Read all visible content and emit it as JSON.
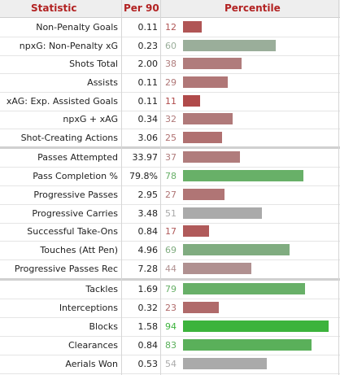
{
  "header": {
    "statistic": "Statistic",
    "per90": "Per 90",
    "percentile": "Percentile"
  },
  "colors": {
    "low": "#b06060",
    "mid_low": "#b07a7a",
    "mid": "#9aaa9a",
    "gray": "#aaaaaa",
    "green": "#6cb36c",
    "bright_green": "#3bb33b"
  },
  "rows": [
    {
      "stat": "Non-Penalty Goals",
      "per90": "0.11",
      "pct": "12",
      "color": "#b05555"
    },
    {
      "stat": "npxG: Non-Penalty xG",
      "per90": "0.23",
      "pct": "60",
      "color": "#9aae9a"
    },
    {
      "stat": "Shots Total",
      "per90": "2.00",
      "pct": "38",
      "color": "#b07c7c"
    },
    {
      "stat": "Assists",
      "per90": "0.11",
      "pct": "29",
      "color": "#b07777"
    },
    {
      "stat": "xAG: Exp. Assisted Goals",
      "per90": "0.11",
      "pct": "11",
      "color": "#b04a4a"
    },
    {
      "stat": "npxG + xAG",
      "per90": "0.34",
      "pct": "32",
      "color": "#b07979"
    },
    {
      "stat": "Shot-Creating Actions",
      "per90": "3.06",
      "pct": "25",
      "color": "#b07070"
    },
    {
      "stat": "Passes Attempted",
      "per90": "33.97",
      "pct": "37",
      "color": "#b07c7c"
    },
    {
      "stat": "Pass Completion %",
      "per90": "79.8%",
      "pct": "78",
      "color": "#68b068"
    },
    {
      "stat": "Progressive Passes",
      "per90": "2.95",
      "pct": "27",
      "color": "#b07575"
    },
    {
      "stat": "Progressive Carries",
      "per90": "3.48",
      "pct": "51",
      "color": "#aaaaaa"
    },
    {
      "stat": "Successful Take-Ons",
      "per90": "0.84",
      "pct": "17",
      "color": "#b05a5a"
    },
    {
      "stat": "Touches (Att Pen)",
      "per90": "4.96",
      "pct": "69",
      "color": "#80ac80"
    },
    {
      "stat": "Progressive Passes Rec",
      "per90": "7.28",
      "pct": "44",
      "color": "#b09090"
    },
    {
      "stat": "Tackles",
      "per90": "1.69",
      "pct": "79",
      "color": "#68b068"
    },
    {
      "stat": "Interceptions",
      "per90": "0.32",
      "pct": "23",
      "color": "#b06a6a"
    },
    {
      "stat": "Blocks",
      "per90": "1.58",
      "pct": "94",
      "color": "#3cb33c"
    },
    {
      "stat": "Clearances",
      "per90": "0.84",
      "pct": "83",
      "color": "#5ab05a"
    },
    {
      "stat": "Aerials Won",
      "per90": "0.53",
      "pct": "54",
      "color": "#aaaaaa"
    }
  ]
}
